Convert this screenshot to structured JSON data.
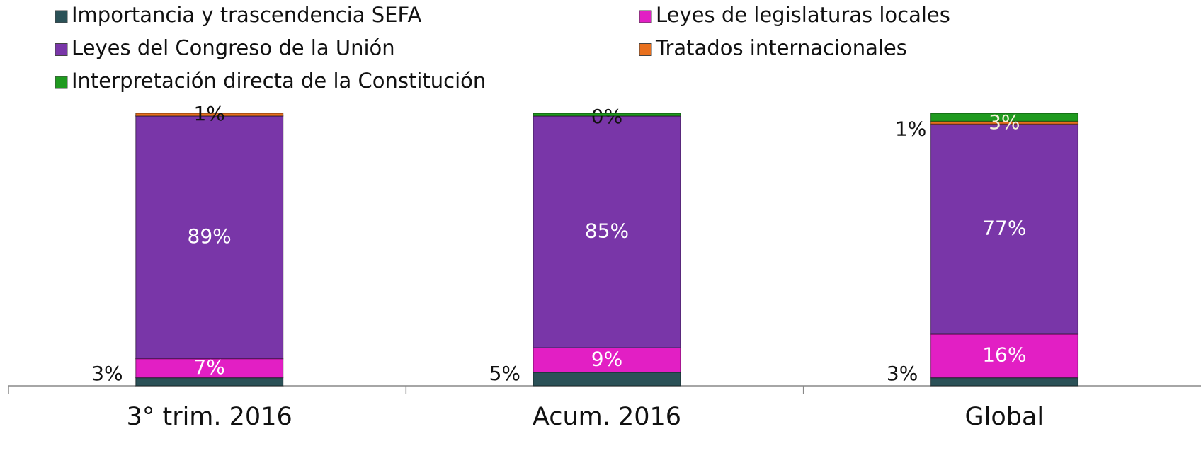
{
  "chart_data": {
    "type": "stacked_bar",
    "categories": [
      "3° trim. 2016",
      "Acum. 2016",
      "Global"
    ],
    "ylim": [
      0,
      100
    ],
    "series": [
      {
        "name": "Importancia y trascendencia SEFA",
        "color": "#2b5157",
        "values": [
          3,
          5,
          3
        ],
        "value_labels": [
          "3%",
          "5%",
          "3%"
        ]
      },
      {
        "name": "Leyes de legislaturas locales",
        "color": "#e21fc4",
        "values": [
          7,
          9,
          16
        ],
        "value_labels": [
          "7%",
          "9%",
          "16%"
        ]
      },
      {
        "name": "Leyes del Congreso de la Unión",
        "color": "#7936a8",
        "values": [
          89,
          85,
          77
        ],
        "value_labels": [
          "89%",
          "85%",
          "77%"
        ]
      },
      {
        "name": "Tratados internacionales",
        "color": "#e8701e",
        "values": [
          1,
          0,
          1
        ],
        "value_labels": [
          "1%",
          "0%",
          "1%"
        ]
      },
      {
        "name": "Interpretación directa de la Constitución",
        "color": "#1f9a1f",
        "values": [
          0,
          1,
          3
        ],
        "value_labels": [
          null,
          null,
          "3%"
        ]
      }
    ]
  }
}
